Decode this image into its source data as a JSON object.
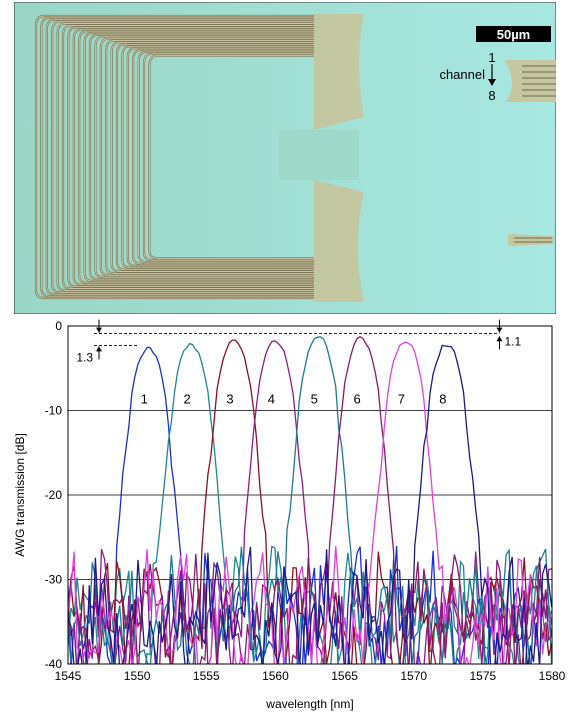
{
  "micrograph": {
    "scale_bar_label": "50µm",
    "channel_label": "channel",
    "channel_first": "1",
    "channel_last": "8"
  },
  "chart_data": {
    "type": "line",
    "xlabel": "wavelength [nm]",
    "ylabel": "AWG transmission [dB]",
    "xlim": [
      1545,
      1580
    ],
    "ylim": [
      -40,
      0
    ],
    "x_ticks": [
      "1545",
      "1550",
      "1555",
      "1560",
      "1565",
      "1570",
      "1575",
      "1580"
    ],
    "y_ticks": [
      "0",
      "-10",
      "-20",
      "-30",
      "-40"
    ],
    "grid": "horizontal",
    "annotations": {
      "left_gap": "1.3",
      "right_gap": "1.1"
    },
    "series": [
      {
        "name": "1",
        "color": "#1a2fd6",
        "center": 1550.8,
        "peak": -2.3
      },
      {
        "name": "2",
        "color": "#1f8a8a",
        "center": 1553.9,
        "peak": -1.9
      },
      {
        "name": "3",
        "color": "#8b1020",
        "center": 1557.0,
        "peak": -1.6
      },
      {
        "name": "4",
        "color": "#8e1a8e",
        "center": 1560.0,
        "peak": -1.4
      },
      {
        "name": "5",
        "color": "#1a7a9a",
        "center": 1563.1,
        "peak": -1.1
      },
      {
        "name": "6",
        "color": "#8a1a6a",
        "center": 1566.2,
        "peak": -1.2
      },
      {
        "name": "7",
        "color": "#e040e0",
        "center": 1569.4,
        "peak": -1.4
      },
      {
        "name": "8",
        "color": "#1a1a8a",
        "center": 1572.4,
        "peak": -1.9
      }
    ]
  }
}
